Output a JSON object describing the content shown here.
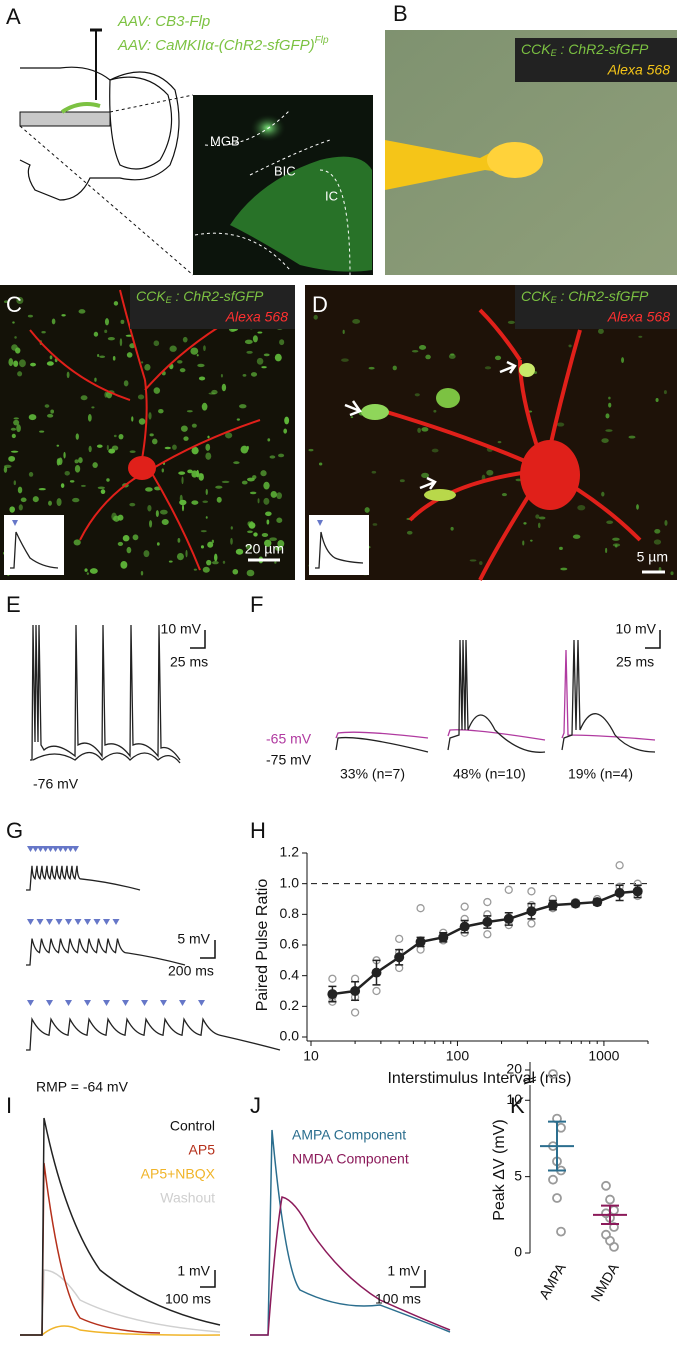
{
  "panels": {
    "A": {
      "label": "A",
      "virus_1": "AAV: CB3-Flp",
      "virus_2": "AAV: CaMKIIα-(ChR2-sfGFP)",
      "virus_2_sup": "Flp",
      "regions": [
        "MGB",
        "BIC",
        "IC"
      ]
    },
    "B": {
      "label": "B",
      "legend": {
        "cck": "CCK",
        "cck_sub": "E",
        "reporter": " : ChR2-sfGFP",
        "dye": "Alexa 568"
      }
    },
    "C": {
      "label": "C",
      "legend": {
        "cck": "CCK",
        "cck_sub": "E",
        "reporter": " : ChR2-sfGFP",
        "dye": "Alexa 568"
      },
      "scale_bar": "20 µm"
    },
    "D": {
      "label": "D",
      "legend": {
        "cck": "CCK",
        "cck_sub": "E",
        "reporter": " : ChR2-sfGFP",
        "dye": "Alexa 568"
      },
      "scale_bar": "5 µm"
    },
    "E": {
      "label": "E",
      "scale_v": "10 mV",
      "scale_t": "25 ms",
      "vm": "-76 mV"
    },
    "F": {
      "label": "F",
      "scale_v": "10 mV",
      "scale_t": "25 ms",
      "vm_magenta": "-65 mV",
      "vm_black": "-75 mV",
      "groups": [
        "33% (n=7)",
        "48% (n=10)",
        "19% (n=4)"
      ]
    },
    "G": {
      "label": "G",
      "scale_v": "5 mV",
      "scale_t": "200 ms",
      "rmp": "RMP = -64 mV"
    },
    "H": {
      "label": "H"
    },
    "I": {
      "label": "I",
      "legend": [
        "Control",
        "AP5",
        "AP5+NBQX",
        "Washout"
      ],
      "scale_v": "1 mV",
      "scale_t": "100 ms"
    },
    "J": {
      "label": "J",
      "legend": [
        "AMPA Component",
        "NMDA Component"
      ],
      "scale_v": "1 mV",
      "scale_t": "100 ms"
    },
    "K": {
      "label": "K"
    }
  },
  "chart_data": [
    {
      "type": "line",
      "xlabel": "Interstimulus Interval (ms)",
      "ylabel": "Paired Pulse Ratio",
      "log_x": true,
      "xlim": [
        10,
        2000
      ],
      "ylim": [
        0,
        1.2
      ],
      "xticks": [
        10,
        100,
        1000
      ],
      "yticks": [
        {
          "value": 0,
          "label": "0.0"
        },
        0.2,
        0.4,
        0.6,
        0.8,
        {
          "value": 1,
          "label": "1.0"
        },
        1.2
      ],
      "reference_line": 1,
      "x": [
        14,
        20,
        28,
        40,
        56,
        80,
        112,
        160,
        224,
        320,
        448,
        640,
        900,
        1280,
        1700
      ],
      "series": [
        {
          "color": "#222222",
          "values": [
            0.28,
            0.3,
            0.42,
            0.52,
            0.62,
            0.65,
            0.72,
            0.75,
            0.77,
            0.82,
            0.86,
            0.87,
            0.88,
            0.94,
            0.95
          ],
          "errors": [
            0.05,
            0.06,
            0.08,
            0.05,
            0.03,
            0.03,
            0.04,
            0.04,
            0.04,
            0.05,
            0.03,
            0.02,
            0.02,
            0.05,
            0.04
          ]
        }
      ],
      "individual": {
        "color": "#9a9a9a",
        "x": [
          14,
          14,
          14,
          20,
          20,
          20,
          28,
          28,
          28,
          40,
          40,
          40,
          56,
          56,
          56,
          80,
          80,
          112,
          112,
          112,
          160,
          160,
          160,
          224,
          224,
          224,
          320,
          320,
          320,
          448,
          448,
          640,
          640,
          900,
          1280,
          1280,
          1700,
          1700
        ],
        "values": [
          0.38,
          0.26,
          0.23,
          0.38,
          0.26,
          0.16,
          0.5,
          0.42,
          0.3,
          0.64,
          0.55,
          0.45,
          0.84,
          0.63,
          0.57,
          0.68,
          0.63,
          0.85,
          0.77,
          0.68,
          0.88,
          0.8,
          0.67,
          0.96,
          0.78,
          0.73,
          0.95,
          0.86,
          0.74,
          0.9,
          0.84,
          0.88,
          0.87,
          0.9,
          1.12,
          0.98,
          1.0,
          0.92
        ]
      }
    },
    {
      "type": "dot",
      "ylabel": "Peak  ΔV (mV)",
      "categories": [
        "AMPA",
        "NMDA"
      ],
      "colors": [
        "#2b6e8e",
        "#8b1a5a"
      ],
      "ylim": [
        0,
        21
      ],
      "axis_break": [
        11,
        19
      ],
      "yticks": [
        0,
        5,
        10,
        20
      ],
      "values": [
        7.0,
        2.5
      ],
      "errors": [
        1.6,
        0.6
      ],
      "points": [
        [
          19.5,
          8.8,
          8.2,
          7.0,
          6.0,
          5.4,
          4.8,
          3.6,
          1.4
        ],
        [
          4.4,
          3.5,
          2.8,
          2.6,
          2.3,
          1.7,
          1.2,
          0.8,
          0.4
        ]
      ],
      "point_color": "#9a9a9a"
    }
  ]
}
